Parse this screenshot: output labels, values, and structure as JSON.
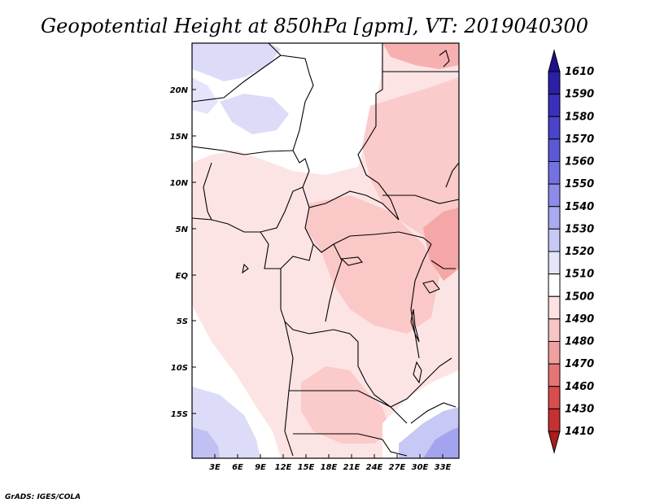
{
  "map": {
    "title": "Geopotential Height at 850hPa [gpm], VT: 2019040300",
    "credit": "GrADS: IGES/COLA",
    "lat_labels": [
      "20N",
      "15N",
      "10N",
      "5N",
      "EQ",
      "5S",
      "10S",
      "15S"
    ],
    "lon_labels": [
      "3E",
      "6E",
      "9E",
      "12E",
      "15E",
      "18E",
      "21E",
      "24E",
      "27E",
      "30E",
      "33E"
    ],
    "colorbar": {
      "levels": [
        "1610",
        "1590",
        "1580",
        "1570",
        "1560",
        "1550",
        "1540",
        "1530",
        "1520",
        "1510",
        "1500",
        "1490",
        "1480",
        "1470",
        "1460",
        "1430",
        "1410"
      ],
      "colors": [
        "#1f0f8f",
        "#2a1fa6",
        "#3a30bc",
        "#4a44cc",
        "#5c58d8",
        "#7472e2",
        "#8e8cea",
        "#aaaaf0",
        "#c8c8f6",
        "#e4e4fa",
        "#ffffff",
        "#fde2e2",
        "#f9c4c4",
        "#f0a0a0",
        "#e67676",
        "#d84e4e",
        "#c63030",
        "#ad1c1c"
      ]
    }
  }
}
